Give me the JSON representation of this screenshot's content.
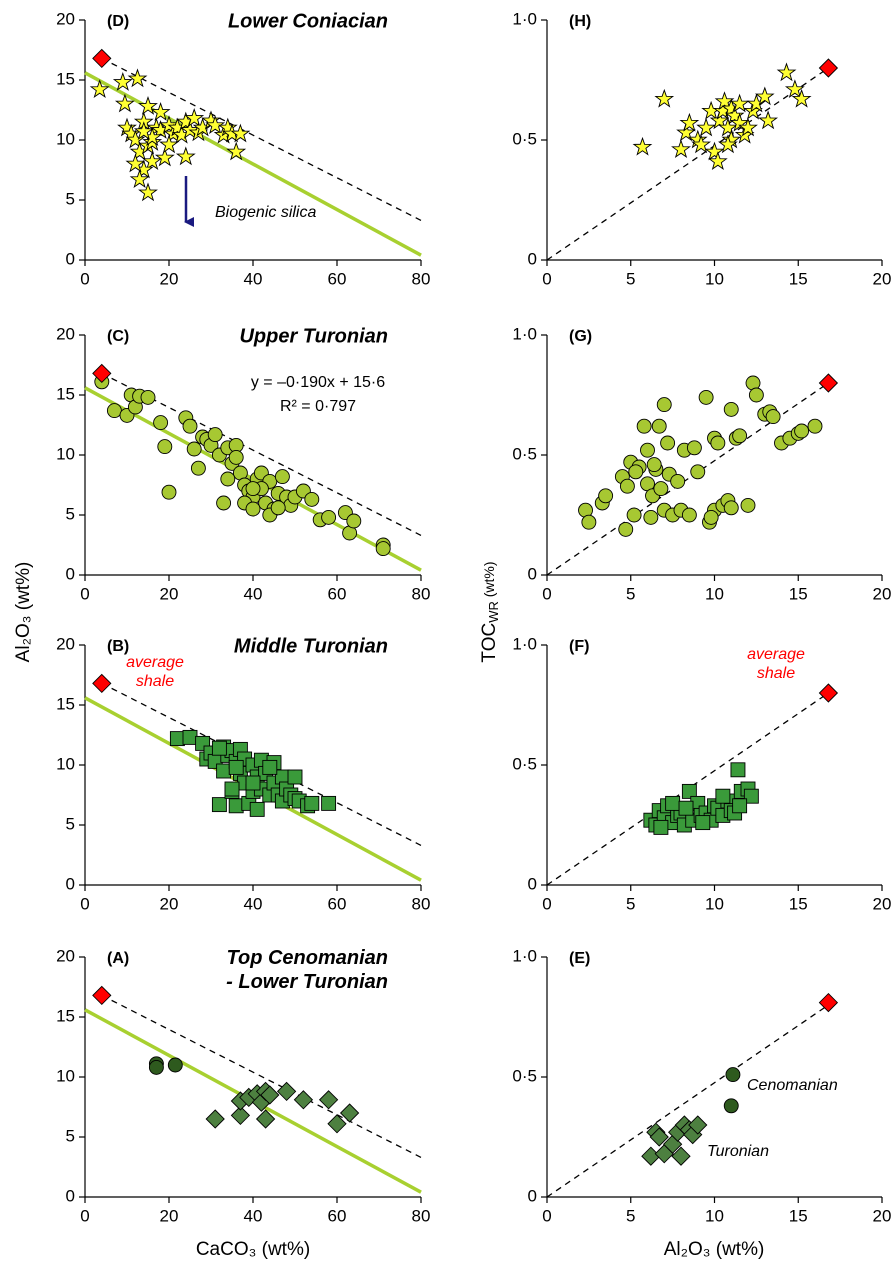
{
  "axis_labels": {
    "left_y": "Al₂O₃ (wt%)",
    "right_y": [
      "TOC",
      "WR",
      " (wt%)"
    ],
    "left_x": "CaCO₃ (wt%)",
    "right_x": "Al₂O₃ (wt%)"
  },
  "chart_data": [
    {
      "type": "scatter",
      "panel": "(D)",
      "title": "Lower Coniacian",
      "xlim": [
        0,
        80
      ],
      "ylim": [
        0,
        20
      ],
      "xticks": [
        0,
        20,
        40,
        60,
        80
      ],
      "yticks": [
        0,
        5,
        10,
        15,
        20
      ],
      "lines": [
        {
          "style": "dashed",
          "color": "#000000",
          "x": [
            4,
            80
          ],
          "values": [
            16.8,
            3.3
          ]
        },
        {
          "style": "solid",
          "color": "#a8d030",
          "x": [
            0,
            80
          ],
          "values": [
            15.6,
            0.4
          ]
        }
      ],
      "series": [
        {
          "marker": "star",
          "color": "#ffff33",
          "x": [
            3.5,
            9,
            9.5,
            12.5,
            10,
            11,
            12,
            13,
            14,
            15,
            15,
            16,
            17,
            18,
            19,
            20,
            21,
            22,
            23,
            24,
            25,
            26,
            27,
            28,
            30,
            31,
            33,
            34,
            35,
            36,
            37,
            14,
            13,
            12,
            15,
            16,
            18,
            20,
            16,
            14,
            24
          ],
          "values": [
            14.2,
            14.8,
            13.0,
            15.1,
            11.0,
            10.5,
            10.0,
            9.0,
            11.5,
            12.8,
            9.5,
            8.2,
            11.0,
            10.8,
            8.5,
            11.2,
            10.5,
            11.0,
            10.4,
            11.5,
            10.8,
            11.8,
            10.6,
            11.0,
            11.6,
            11.2,
            10.4,
            11.0,
            10.5,
            9.0,
            10.5,
            7.5,
            6.7,
            8.0,
            5.6,
            9.8,
            12.3,
            9.6,
            10.2,
            10.7,
            8.6
          ]
        },
        {
          "marker": "diamond",
          "color": "#ff0000",
          "x": [
            4
          ],
          "values": [
            16.8
          ]
        }
      ],
      "annotations": [
        {
          "text": "Biogenic silica"
        }
      ]
    },
    {
      "type": "scatter",
      "panel": "(C)",
      "title": "Upper Turonian",
      "xlim": [
        0,
        80
      ],
      "ylim": [
        0,
        20
      ],
      "xticks": [
        0,
        20,
        40,
        60,
        80
      ],
      "yticks": [
        0,
        5,
        10,
        15,
        20
      ],
      "lines": [
        {
          "style": "dashed",
          "color": "#000000",
          "x": [
            4,
            80
          ],
          "values": [
            16.8,
            3.3
          ]
        },
        {
          "style": "solid",
          "color": "#a8d030",
          "x": [
            0,
            80
          ],
          "values": [
            15.6,
            0.4
          ]
        }
      ],
      "series": [
        {
          "marker": "circle",
          "color": "#a7c832",
          "x": [
            4,
            7,
            10,
            11,
            12,
            13,
            15,
            18,
            19,
            20,
            24,
            25,
            26,
            27,
            28,
            29,
            30,
            31,
            32,
            33,
            34,
            35,
            36,
            36,
            37,
            38,
            39,
            40,
            41,
            42,
            43,
            44,
            45,
            46,
            47,
            48,
            49,
            50,
            52,
            54,
            56,
            58,
            62,
            63,
            64,
            71,
            71,
            38,
            40,
            42,
            44,
            46,
            34,
            40
          ],
          "values": [
            16.1,
            13.7,
            13.3,
            15.0,
            14.0,
            14.9,
            14.8,
            12.7,
            10.7,
            6.9,
            13.1,
            12.4,
            10.5,
            8.9,
            11.5,
            11.3,
            10.8,
            11.7,
            10.0,
            6.0,
            10.6,
            9.3,
            10.8,
            9.8,
            8.5,
            7.5,
            7.0,
            6.5,
            8.0,
            8.5,
            6.0,
            7.8,
            5.5,
            6.8,
            8.2,
            6.5,
            5.8,
            6.5,
            7.0,
            6.3,
            4.6,
            4.8,
            5.2,
            3.5,
            4.5,
            2.5,
            2.2,
            6.0,
            5.5,
            7.2,
            5.0,
            5.6,
            8.0,
            7.2
          ]
        },
        {
          "marker": "diamond",
          "color": "#ff0000",
          "x": [
            4
          ],
          "values": [
            16.8
          ]
        }
      ],
      "annotations": [
        {
          "text": "y = –0·190x + 15·6"
        },
        {
          "text": "R² = 0·797"
        }
      ]
    },
    {
      "type": "scatter",
      "panel": "(B)",
      "title": "Middle Turonian",
      "xlim": [
        0,
        80
      ],
      "ylim": [
        0,
        20
      ],
      "xticks": [
        0,
        20,
        40,
        60,
        80
      ],
      "yticks": [
        0,
        5,
        10,
        15,
        20
      ],
      "lines": [
        {
          "style": "dashed",
          "color": "#000000",
          "x": [
            4,
            80
          ],
          "values": [
            16.8,
            3.3
          ]
        },
        {
          "style": "solid",
          "color": "#a8d030",
          "x": [
            0,
            80
          ],
          "values": [
            15.6,
            0.4
          ]
        }
      ],
      "series": [
        {
          "marker": "square",
          "color": "#3a9a3a",
          "x": [
            22,
            25,
            28,
            29,
            30,
            31,
            32,
            33,
            33,
            34,
            35,
            35,
            36,
            36,
            37,
            37,
            38,
            38,
            39,
            40,
            40,
            41,
            41,
            42,
            42,
            43,
            44,
            45,
            45,
            46,
            47,
            47,
            48,
            49,
            50,
            50,
            51,
            53,
            54,
            58,
            32,
            35,
            40,
            36,
            44
          ],
          "values": [
            12.2,
            12.3,
            11.8,
            10.5,
            11.0,
            10.3,
            6.7,
            11.5,
            9.5,
            10.8,
            7.8,
            11.2,
            10.3,
            6.6,
            9.3,
            11.3,
            8.5,
            10.5,
            6.8,
            7.8,
            10.0,
            6.3,
            9.0,
            10.4,
            8.0,
            9.3,
            7.5,
            10.2,
            8.5,
            7.5,
            9.0,
            7.0,
            8.0,
            7.5,
            9.0,
            7.2,
            7.0,
            6.6,
            6.8,
            6.8,
            11.4,
            8.0,
            8.5,
            9.8,
            9.8
          ]
        },
        {
          "marker": "diamond",
          "color": "#ff0000",
          "x": [
            4
          ],
          "values": [
            16.8
          ]
        }
      ],
      "annotations": [
        {
          "text": [
            "average",
            "shale"
          ],
          "color": "#ff0000"
        }
      ]
    },
    {
      "type": "scatter",
      "panel": "(A)",
      "title": [
        "Top Cenomanian",
        "- Lower Turonian"
      ],
      "xlim": [
        0,
        80
      ],
      "ylim": [
        0,
        20
      ],
      "xticks": [
        0,
        20,
        40,
        60,
        80
      ],
      "yticks": [
        0,
        5,
        10,
        15,
        20
      ],
      "lines": [
        {
          "style": "dashed",
          "color": "#000000",
          "x": [
            4,
            80
          ],
          "values": [
            16.8,
            3.3
          ]
        },
        {
          "style": "solid",
          "color": "#a8d030",
          "x": [
            0,
            80
          ],
          "values": [
            15.6,
            0.4
          ]
        }
      ],
      "series": [
        {
          "marker": "circle",
          "color": "#2e5a1e",
          "x": [
            17,
            17,
            21.5
          ],
          "values": [
            11.1,
            10.8,
            11.0
          ]
        },
        {
          "marker": "diamond",
          "color": "#4d8040",
          "x": [
            31,
            37,
            37,
            39,
            41,
            42,
            43,
            43,
            44,
            48,
            52,
            58,
            60,
            63
          ],
          "values": [
            6.5,
            6.8,
            8.0,
            8.3,
            8.6,
            7.9,
            8.8,
            6.5,
            8.5,
            8.8,
            8.1,
            8.1,
            6.1,
            7.0
          ]
        },
        {
          "marker": "diamond",
          "color": "#ff0000",
          "x": [
            4
          ],
          "values": [
            16.8
          ]
        }
      ],
      "annotations": []
    },
    {
      "type": "scatter",
      "panel": "(H)",
      "xlim": [
        0,
        20
      ],
      "ylim": [
        0,
        1
      ],
      "xticks": [
        0,
        5,
        10,
        15,
        20
      ],
      "yticks": [
        0,
        {
          "value": 0.5,
          "label": "0·5"
        },
        {
          "value": 1,
          "label": "1·0"
        }
      ],
      "lines": [
        {
          "style": "dashed",
          "color": "#000000",
          "x": [
            0,
            16.8
          ],
          "values": [
            0,
            0.8
          ]
        }
      ],
      "series": [
        {
          "marker": "star",
          "color": "#ffff33",
          "x": [
            5.7,
            7,
            8,
            8.3,
            8.5,
            9,
            9.2,
            9.5,
            9.8,
            10,
            10.2,
            10.3,
            10.5,
            10.6,
            10.8,
            11,
            11,
            11.2,
            11.5,
            11.8,
            12,
            12.3,
            12.5,
            13,
            13.2,
            14.3,
            14.8,
            15.2,
            10.8,
            11.5
          ],
          "values": [
            0.47,
            0.67,
            0.46,
            0.53,
            0.57,
            0.5,
            0.48,
            0.55,
            0.62,
            0.45,
            0.41,
            0.58,
            0.62,
            0.66,
            0.55,
            0.63,
            0.5,
            0.6,
            0.57,
            0.52,
            0.55,
            0.62,
            0.65,
            0.68,
            0.58,
            0.78,
            0.71,
            0.67,
            0.48,
            0.65
          ]
        },
        {
          "marker": "diamond",
          "color": "#ff0000",
          "x": [
            16.8
          ],
          "values": [
            0.8
          ]
        }
      ],
      "annotations": []
    },
    {
      "type": "scatter",
      "panel": "(G)",
      "xlim": [
        0,
        20
      ],
      "ylim": [
        0,
        1
      ],
      "xticks": [
        0,
        5,
        10,
        15,
        20
      ],
      "yticks": [
        0,
        {
          "value": 0.5,
          "label": "0·5"
        },
        {
          "value": 1,
          "label": "1·0"
        }
      ],
      "lines": [
        {
          "style": "dashed",
          "color": "#000000",
          "x": [
            0,
            16.8
          ],
          "values": [
            0,
            0.8
          ]
        }
      ],
      "series": [
        {
          "marker": "circle",
          "color": "#a7c832",
          "x": [
            2.3,
            2.5,
            3.3,
            3.5,
            4.5,
            4.7,
            4.8,
            5,
            5.2,
            5.5,
            5.8,
            6,
            6,
            6.2,
            6.3,
            6.5,
            6.7,
            6.8,
            7,
            7,
            7.2,
            7.3,
            7.5,
            7.8,
            8,
            8.2,
            8.5,
            9,
            9.5,
            9.7,
            10,
            10,
            10.2,
            10.5,
            10.8,
            11,
            11,
            11.3,
            11.5,
            12,
            12.3,
            12.5,
            13,
            13.3,
            13.5,
            14,
            14.5,
            15,
            15.2,
            16,
            9.8,
            8.8,
            6.4,
            5.3
          ],
          "values": [
            0.27,
            0.22,
            0.3,
            0.33,
            0.41,
            0.19,
            0.37,
            0.47,
            0.25,
            0.45,
            0.62,
            0.52,
            0.38,
            0.24,
            0.33,
            0.44,
            0.62,
            0.36,
            0.71,
            0.27,
            0.55,
            0.42,
            0.25,
            0.39,
            0.27,
            0.52,
            0.25,
            0.43,
            0.74,
            0.22,
            0.27,
            0.57,
            0.55,
            0.29,
            0.31,
            0.69,
            0.28,
            0.57,
            0.58,
            0.29,
            0.8,
            0.75,
            0.67,
            0.68,
            0.66,
            0.55,
            0.57,
            0.59,
            0.6,
            0.62,
            0.24,
            0.53,
            0.46,
            0.43
          ]
        },
        {
          "marker": "diamond",
          "color": "#ff0000",
          "x": [
            16.8
          ],
          "values": [
            0.8
          ]
        }
      ],
      "annotations": []
    },
    {
      "type": "scatter",
      "panel": "(F)",
      "xlim": [
        0,
        20
      ],
      "ylim": [
        0,
        1
      ],
      "xticks": [
        0,
        5,
        10,
        15,
        20
      ],
      "yticks": [
        0,
        {
          "value": 0.5,
          "label": "0·5"
        },
        {
          "value": 1,
          "label": "1·0"
        }
      ],
      "lines": [
        {
          "style": "dashed",
          "color": "#000000",
          "x": [
            0,
            16.8
          ],
          "values": [
            0,
            0.8
          ]
        }
      ],
      "series": [
        {
          "marker": "square",
          "color": "#3a9a3a",
          "x": [
            6.2,
            6.5,
            6.7,
            7,
            7.2,
            7.5,
            7.8,
            8,
            8.2,
            8.5,
            8.7,
            9,
            9.2,
            9.5,
            9.8,
            10,
            10.2,
            10.5,
            10.8,
            11,
            11.2,
            11.4,
            11.6,
            12,
            12.2,
            6.8,
            7.5,
            8.3,
            9.3,
            10.5,
            11.5
          ],
          "values": [
            0.27,
            0.25,
            0.31,
            0.28,
            0.33,
            0.26,
            0.29,
            0.3,
            0.25,
            0.39,
            0.27,
            0.34,
            0.29,
            0.3,
            0.27,
            0.33,
            0.32,
            0.29,
            0.35,
            0.31,
            0.3,
            0.48,
            0.39,
            0.4,
            0.37,
            0.24,
            0.34,
            0.32,
            0.26,
            0.37,
            0.33
          ]
        },
        {
          "marker": "diamond",
          "color": "#ff0000",
          "x": [
            16.8
          ],
          "values": [
            0.8
          ]
        }
      ],
      "annotations": [
        {
          "text": [
            "average",
            "shale"
          ],
          "color": "#ff0000"
        }
      ]
    },
    {
      "type": "scatter",
      "panel": "(E)",
      "xlim": [
        0,
        20
      ],
      "ylim": [
        0,
        1
      ],
      "xticks": [
        0,
        5,
        10,
        15,
        20
      ],
      "yticks": [
        0,
        {
          "value": 0.5,
          "label": "0·5"
        },
        {
          "value": 1,
          "label": "1·0"
        }
      ],
      "lines": [
        {
          "style": "dashed",
          "color": "#000000",
          "x": [
            0,
            16.8
          ],
          "values": [
            0,
            0.8
          ]
        }
      ],
      "series": [
        {
          "marker": "circle",
          "color": "#2e5a1e",
          "x": [
            11.1,
            11.0
          ],
          "values": [
            0.51,
            0.38
          ]
        },
        {
          "marker": "diamond",
          "color": "#4d8040",
          "x": [
            6.2,
            6.5,
            6.7,
            7,
            7.5,
            7.8,
            8,
            8.2,
            8.5,
            8.7,
            9
          ],
          "values": [
            0.17,
            0.27,
            0.25,
            0.18,
            0.22,
            0.27,
            0.17,
            0.3,
            0.28,
            0.26,
            0.3
          ]
        },
        {
          "marker": "diamond",
          "color": "#ff0000",
          "x": [
            16.8
          ],
          "values": [
            0.81
          ]
        }
      ],
      "annotations": [
        {
          "text": "Cenomanian"
        },
        {
          "text": "Turonian"
        }
      ]
    }
  ]
}
